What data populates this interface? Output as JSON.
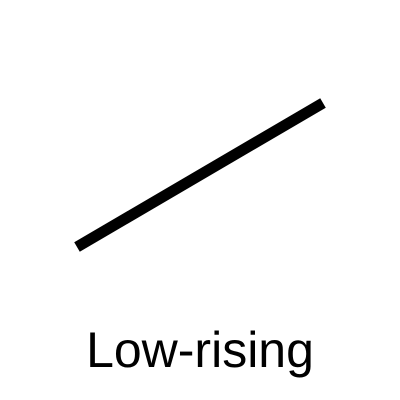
{
  "diagram": {
    "label": "Low-rising",
    "line_color": "#000000",
    "background_color": "#ffffff"
  }
}
